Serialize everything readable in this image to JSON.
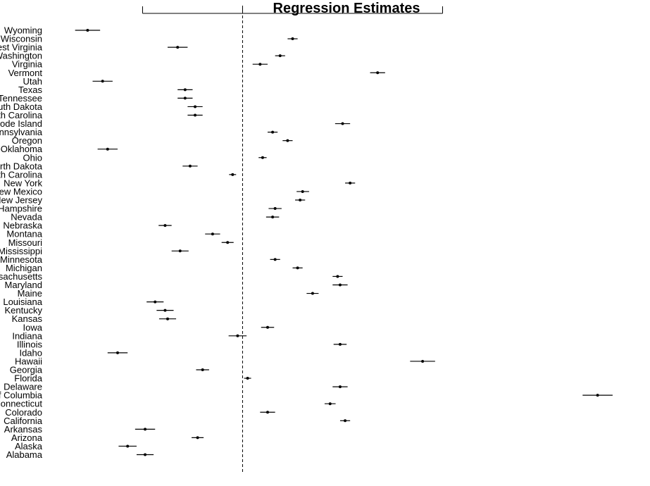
{
  "chart_data": {
    "type": "scatter",
    "title": "Regression Estimates",
    "xlabel": "",
    "ylabel": "",
    "xlim": [
      -3.2,
      3.8
    ],
    "axis_ticks": [
      -2,
      0,
      2,
      4
    ],
    "reference_line": 0,
    "grid": false,
    "legend": "none",
    "states": [
      {
        "name": "Wyoming",
        "est": -3.1,
        "lo": -3.35,
        "hi": -2.85
      },
      {
        "name": "Wisconsin",
        "est": 1.0,
        "lo": 0.9,
        "hi": 1.1
      },
      {
        "name": "West Virginia",
        "est": -1.3,
        "lo": -1.5,
        "hi": -1.1
      },
      {
        "name": "Washington",
        "est": 0.75,
        "lo": 0.65,
        "hi": 0.85
      },
      {
        "name": "Virginia",
        "est": 0.35,
        "lo": 0.2,
        "hi": 0.5
      },
      {
        "name": "Vermont",
        "est": 2.7,
        "lo": 2.55,
        "hi": 2.85
      },
      {
        "name": "Utah",
        "est": -2.8,
        "lo": -3.0,
        "hi": -2.6
      },
      {
        "name": "Texas",
        "est": -1.15,
        "lo": -1.3,
        "hi": -1.0
      },
      {
        "name": "Tennessee",
        "est": -1.15,
        "lo": -1.3,
        "hi": -1.0
      },
      {
        "name": "South Dakota",
        "est": -0.95,
        "lo": -1.1,
        "hi": -0.8
      },
      {
        "name": "South Carolina",
        "est": -0.95,
        "lo": -1.1,
        "hi": -0.8
      },
      {
        "name": "Rhode Island",
        "est": 2.0,
        "lo": 1.85,
        "hi": 2.15
      },
      {
        "name": "Pennsylvania",
        "est": 0.6,
        "lo": 0.5,
        "hi": 0.7
      },
      {
        "name": "Oregon",
        "est": 0.9,
        "lo": 0.8,
        "hi": 1.0
      },
      {
        "name": "Oklahoma",
        "est": -2.7,
        "lo": -2.9,
        "hi": -2.5
      },
      {
        "name": "Ohio",
        "est": 0.4,
        "lo": 0.32,
        "hi": 0.48
      },
      {
        "name": "North Dakota",
        "est": -1.05,
        "lo": -1.2,
        "hi": -0.9
      },
      {
        "name": "North Carolina",
        "est": -0.2,
        "lo": -0.27,
        "hi": -0.13
      },
      {
        "name": "New York",
        "est": 2.15,
        "lo": 2.05,
        "hi": 2.25
      },
      {
        "name": "New Mexico",
        "est": 1.2,
        "lo": 1.08,
        "hi": 1.33
      },
      {
        "name": "New Jersey",
        "est": 1.15,
        "lo": 1.05,
        "hi": 1.25
      },
      {
        "name": "New Hampshire",
        "est": 0.65,
        "lo": 0.52,
        "hi": 0.78
      },
      {
        "name": "Nevada",
        "est": 0.6,
        "lo": 0.47,
        "hi": 0.73
      },
      {
        "name": "Nebraska",
        "est": -1.55,
        "lo": -1.68,
        "hi": -1.42
      },
      {
        "name": "Montana",
        "est": -0.6,
        "lo": -0.75,
        "hi": -0.45
      },
      {
        "name": "Missouri",
        "est": -0.3,
        "lo": -0.42,
        "hi": -0.18
      },
      {
        "name": "Mississippi",
        "est": -1.25,
        "lo": -1.42,
        "hi": -1.08
      },
      {
        "name": "Minnesota",
        "est": 0.65,
        "lo": 0.55,
        "hi": 0.75
      },
      {
        "name": "Michigan",
        "est": 1.1,
        "lo": 1.0,
        "hi": 1.2
      },
      {
        "name": "Massachusetts",
        "est": 1.9,
        "lo": 1.8,
        "hi": 2.0
      },
      {
        "name": "Maryland",
        "est": 1.95,
        "lo": 1.8,
        "hi": 2.1
      },
      {
        "name": "Maine",
        "est": 1.4,
        "lo": 1.28,
        "hi": 1.52
      },
      {
        "name": "Louisiana",
        "est": -1.75,
        "lo": -1.92,
        "hi": -1.58
      },
      {
        "name": "Kentucky",
        "est": -1.55,
        "lo": -1.72,
        "hi": -1.38
      },
      {
        "name": "Kansas",
        "est": -1.5,
        "lo": -1.67,
        "hi": -1.33
      },
      {
        "name": "Iowa",
        "est": 0.5,
        "lo": 0.37,
        "hi": 0.63
      },
      {
        "name": "Indiana",
        "est": -0.1,
        "lo": -0.28,
        "hi": 0.08
      },
      {
        "name": "Illinois",
        "est": 1.95,
        "lo": 1.82,
        "hi": 2.08
      },
      {
        "name": "Idaho",
        "est": -2.5,
        "lo": -2.7,
        "hi": -2.3
      },
      {
        "name": "Hawaii",
        "est": 3.6,
        "lo": 3.35,
        "hi": 3.85
      },
      {
        "name": "Georgia",
        "est": -0.8,
        "lo": -0.93,
        "hi": -0.67
      },
      {
        "name": "Florida",
        "est": 0.1,
        "lo": 0.03,
        "hi": 0.17
      },
      {
        "name": "Delaware",
        "est": 1.95,
        "lo": 1.8,
        "hi": 2.1
      },
      {
        "name": "District of Columbia",
        "est": 7.1,
        "lo": 6.8,
        "hi": 7.4
      },
      {
        "name": "Connecticut",
        "est": 1.75,
        "lo": 1.64,
        "hi": 1.86
      },
      {
        "name": "Colorado",
        "est": 0.5,
        "lo": 0.35,
        "hi": 0.65
      },
      {
        "name": "California",
        "est": 2.05,
        "lo": 1.95,
        "hi": 2.15
      },
      {
        "name": "Arkansas",
        "est": -1.95,
        "lo": -2.15,
        "hi": -1.75
      },
      {
        "name": "Arizona",
        "est": -0.9,
        "lo": -1.02,
        "hi": -0.78
      },
      {
        "name": "Alaska",
        "est": -2.3,
        "lo": -2.48,
        "hi": -2.12
      },
      {
        "name": "Alabama",
        "est": -1.95,
        "lo": -2.12,
        "hi": -1.78
      }
    ]
  }
}
